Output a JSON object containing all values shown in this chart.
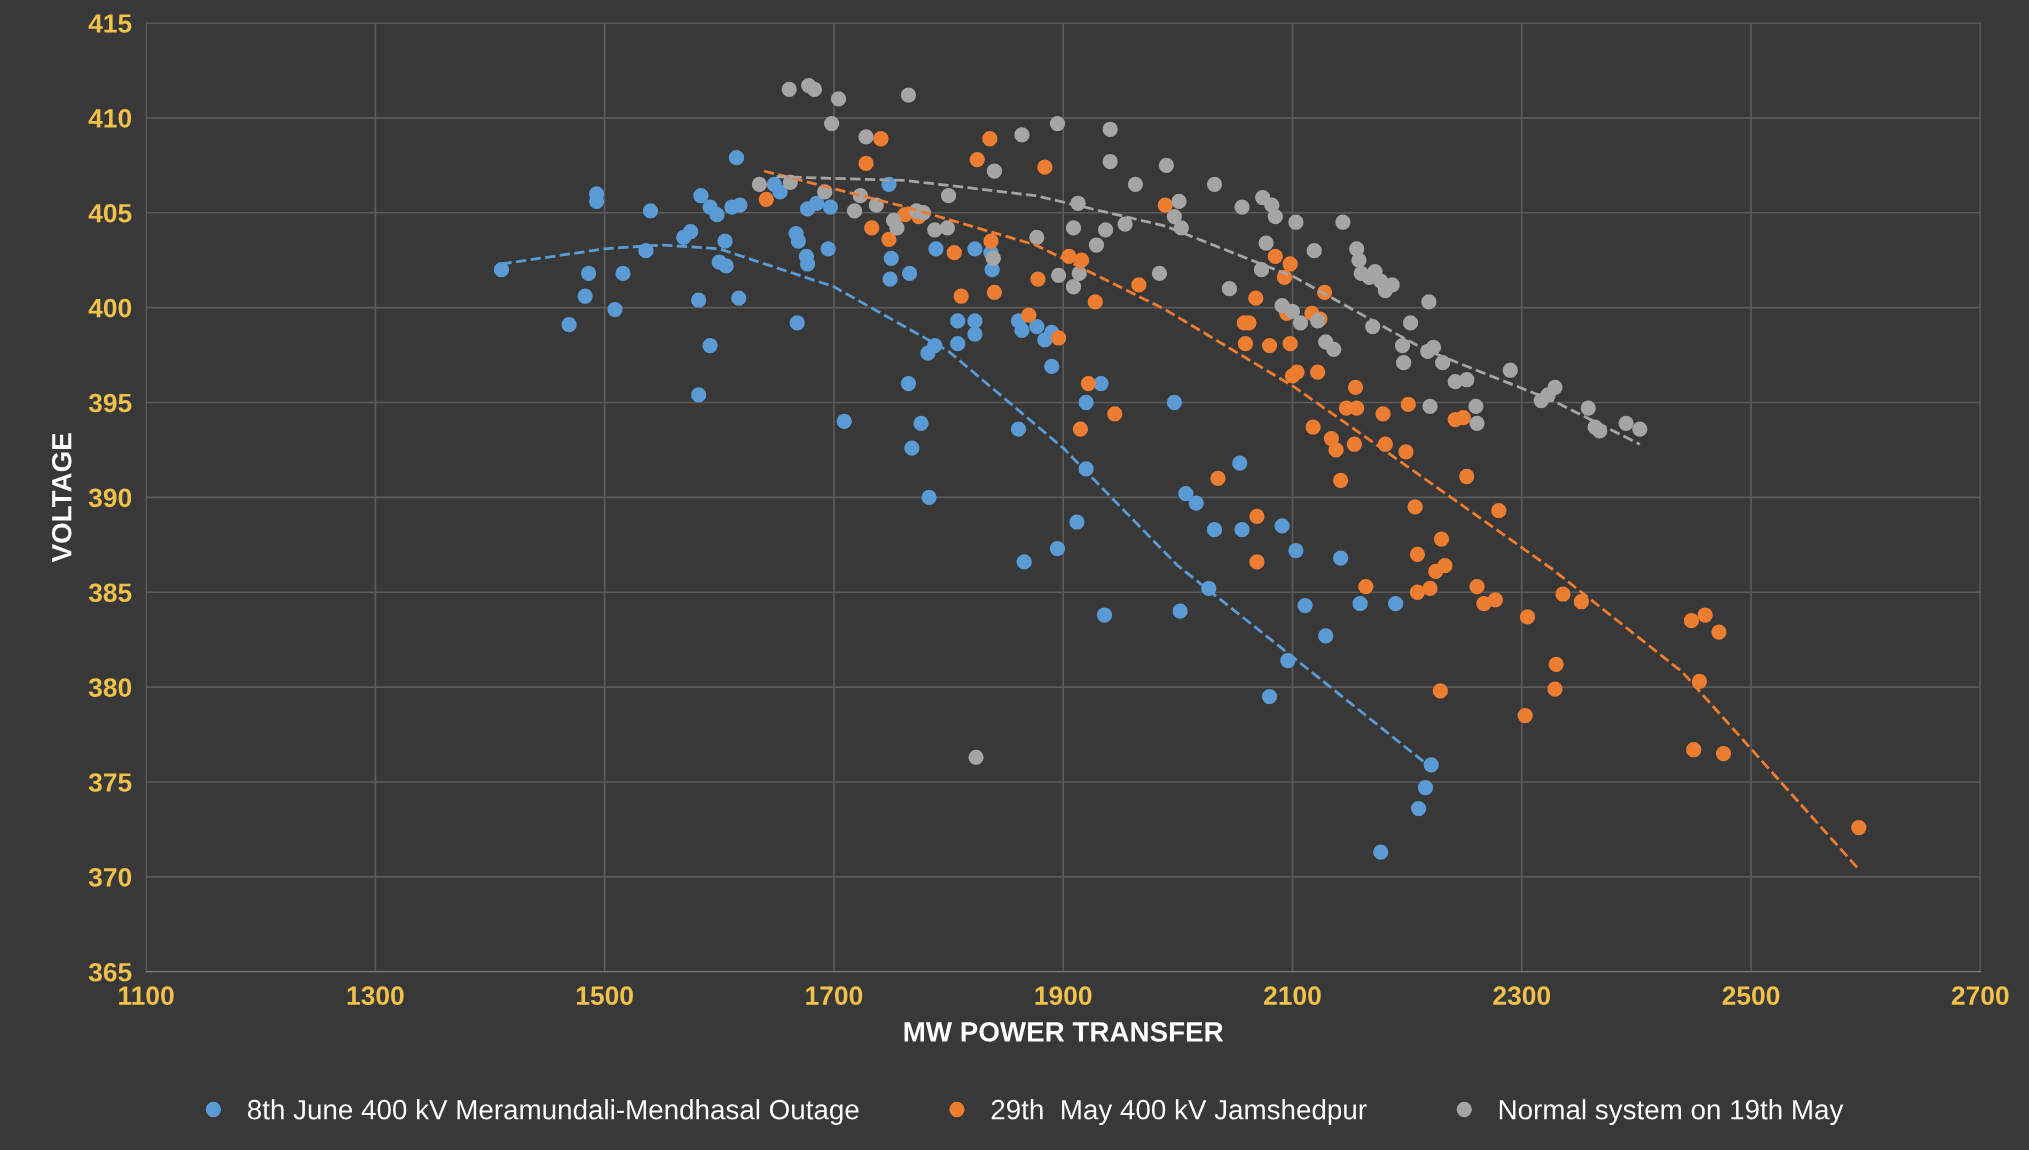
{
  "chart_data": {
    "type": "scatter",
    "xlabel": "MW POWER TRANSFER",
    "ylabel": "VOLTAGE",
    "xlim": [
      1100,
      2700
    ],
    "xticks": [
      1100,
      1300,
      1500,
      1700,
      1900,
      2100,
      2300,
      2500,
      2700
    ],
    "ylim": [
      365,
      415
    ],
    "yticks": [
      365,
      370,
      375,
      380,
      385,
      390,
      395,
      400,
      405,
      410,
      415
    ],
    "grid": true,
    "legend": "bottom",
    "marker": "circle",
    "series": [
      {
        "name": "8th June 400 kV Meramundali-Mendhasal Outage",
        "color": "#5b9bd5",
        "x": [
          1410,
          1469,
          1486,
          1483,
          1493,
          1493,
          1509,
          1516,
          1536,
          1540,
          1569,
          1575,
          1584,
          1582,
          1582,
          1592,
          1592,
          1598,
          1600,
          1606,
          1605,
          1611,
          1618,
          1615,
          1617,
          1648,
          1653,
          1667,
          1668,
          1669,
          1676,
          1677,
          1677,
          1685,
          1695,
          1697,
          1709,
          1748,
          1749,
          1750,
          1766,
          1765,
          1768,
          1776,
          1783,
          1782,
          1788,
          1789,
          1808,
          1808,
          1823,
          1823,
          1823,
          1838,
          1837,
          1861,
          1864,
          1861,
          1866,
          1877,
          1884,
          1890,
          1890,
          1895,
          1912,
          1920,
          1920,
          1933,
          1936,
          1997,
          2002,
          2007,
          2016,
          2027,
          2032,
          2054,
          2056,
          2091,
          2103,
          2096,
          2080,
          2111,
          2129,
          2142,
          2159,
          2190,
          2177,
          2210,
          2216,
          2221
        ],
        "values": [
          402.0,
          399.1,
          401.8,
          400.6,
          406.0,
          405.6,
          399.9,
          401.8,
          403.0,
          405.1,
          403.7,
          404.0,
          405.9,
          400.4,
          395.4,
          398.0,
          405.3,
          404.9,
          402.4,
          402.2,
          403.5,
          405.3,
          405.4,
          407.9,
          400.5,
          406.5,
          406.1,
          403.9,
          399.2,
          403.5,
          402.7,
          402.3,
          405.2,
          405.5,
          403.1,
          405.3,
          394.0,
          406.5,
          401.5,
          402.6,
          401.8,
          396.0,
          392.6,
          393.9,
          390.0,
          397.6,
          398.0,
          403.1,
          399.3,
          398.1,
          399.3,
          398.6,
          403.1,
          402.0,
          402.9,
          399.3,
          398.8,
          393.6,
          386.6,
          399.0,
          398.3,
          396.9,
          398.7,
          387.3,
          388.7,
          391.5,
          395.0,
          396.0,
          383.8,
          395.0,
          384.0,
          390.2,
          389.7,
          385.2,
          388.3,
          391.8,
          388.3,
          388.5,
          387.2,
          381.4,
          379.5,
          384.3,
          382.7,
          386.8,
          384.4,
          384.4,
          371.3,
          373.6,
          374.7,
          375.9
        ]
      },
      {
        "name": "29th  May 400 kV Jamshedpur",
        "color": "#ed7d31",
        "x": [
          1641,
          1728,
          1741,
          1733,
          1748,
          1762,
          1774,
          1805,
          1811,
          1825,
          1836,
          1837,
          1840,
          1870,
          1878,
          1884,
          1896,
          1905,
          1916,
          1915,
          1922,
          1928,
          1945,
          1966,
          1989,
          2035,
          2058,
          2062,
          2059,
          2068,
          2069,
          2069,
          2080,
          2085,
          2093,
          2098,
          2095,
          2098,
          2100,
          2104,
          2117,
          2118,
          2122,
          2124,
          2128,
          2134,
          2138,
          2147,
          2142,
          2154,
          2156,
          2155,
          2164,
          2179,
          2181,
          2199,
          2201,
          2207,
          2209,
          2209,
          2220,
          2225,
          2230,
          2233,
          2229,
          2242,
          2249,
          2252,
          2261,
          2267,
          2277,
          2280,
          2305,
          2303,
          2330,
          2329,
          2336,
          2352,
          2448,
          2460,
          2472,
          2455,
          2450,
          2476,
          2594
        ],
        "values": [
          405.7,
          407.6,
          408.9,
          404.2,
          403.6,
          404.9,
          404.8,
          402.9,
          400.6,
          407.8,
          408.9,
          403.5,
          400.8,
          399.6,
          401.5,
          407.4,
          398.4,
          402.7,
          402.5,
          393.6,
          396.0,
          400.3,
          394.4,
          401.2,
          405.4,
          391.0,
          399.2,
          399.2,
          398.1,
          400.5,
          386.6,
          389.0,
          398.0,
          402.7,
          401.6,
          398.1,
          399.7,
          402.3,
          396.4,
          396.6,
          399.7,
          393.7,
          396.6,
          399.4,
          400.8,
          393.1,
          392.5,
          394.7,
          390.9,
          392.8,
          394.7,
          395.8,
          385.3,
          394.4,
          392.8,
          392.4,
          394.9,
          389.5,
          387.0,
          385.0,
          385.2,
          386.1,
          387.8,
          386.4,
          379.8,
          394.1,
          394.2,
          391.1,
          385.3,
          384.4,
          384.6,
          389.3,
          383.7,
          378.5,
          381.2,
          379.9,
          384.9,
          384.5,
          383.5,
          383.8,
          382.9,
          380.3,
          376.7,
          376.5,
          372.6
        ]
      },
      {
        "name": "Normal system on 19th May",
        "color": "#a5a5a5",
        "x": [
          1661,
          1678,
          1683,
          1704,
          1698,
          1728,
          1765,
          1635,
          1662,
          1692,
          1718,
          1723,
          1737,
          1752,
          1755,
          1772,
          1778,
          1788,
          1799,
          1800,
          1840,
          1839,
          1864,
          1877,
          1895,
          1896,
          1909,
          1909,
          1913,
          1914,
          1929,
          1937,
          1941,
          1941,
          1954,
          1963,
          1984,
          1990,
          1997,
          2001,
          2003,
          2032,
          2045,
          2056,
          2074,
          2073,
          2077,
          2082,
          2085,
          2091,
          2100,
          2103,
          2107,
          2119,
          2122,
          2129,
          2136,
          2144,
          2156,
          2158,
          2160,
          2167,
          2172,
          2177,
          2181,
          2187,
          2170,
          2196,
          2197,
          2203,
          2219,
          2218,
          2223,
          2231,
          2242,
          2252,
          2260,
          2261,
          2220,
          2290,
          2317,
          2323,
          2329,
          2358,
          2364,
          2368,
          2391,
          2403,
          1824
        ],
        "values": [
          411.5,
          411.7,
          411.5,
          411.0,
          409.7,
          409.0,
          411.2,
          406.5,
          406.6,
          406.1,
          405.1,
          405.9,
          405.4,
          404.6,
          404.2,
          405.1,
          405.0,
          404.1,
          404.2,
          405.9,
          407.2,
          402.6,
          409.1,
          403.7,
          409.7,
          401.7,
          401.1,
          404.2,
          405.5,
          401.8,
          403.3,
          404.1,
          409.4,
          407.7,
          404.4,
          406.5,
          401.8,
          407.5,
          404.8,
          405.6,
          404.2,
          406.5,
          401.0,
          405.3,
          405.8,
          402.0,
          403.4,
          405.4,
          404.8,
          400.1,
          399.8,
          404.5,
          399.2,
          403.0,
          399.3,
          398.2,
          397.8,
          404.5,
          403.1,
          402.5,
          401.8,
          401.6,
          401.9,
          401.4,
          400.9,
          401.2,
          399.0,
          398.0,
          397.1,
          399.2,
          400.3,
          397.7,
          397.9,
          397.1,
          396.1,
          396.2,
          394.8,
          393.9,
          394.8,
          396.7,
          395.1,
          395.4,
          395.8,
          394.7,
          393.7,
          393.5,
          393.9,
          393.6,
          376.3
        ]
      },
      {
        "type": "line",
        "color": "#5b9bd5",
        "line_style": "dashed",
        "marker": "none",
        "x": [
          1410,
          1500,
          1550,
          1600,
          1700,
          1800,
          1900,
          2000,
          2100,
          2220
        ],
        "values": [
          402.3,
          403.1,
          403.3,
          403.1,
          401.1,
          397.7,
          392.6,
          386.4,
          381.6,
          375.8
        ]
      },
      {
        "type": "line",
        "color": "#ed7d31",
        "line_style": "dashed",
        "marker": "none",
        "x": [
          1639,
          1763,
          1876,
          1989,
          2102,
          2215,
          2327,
          2440,
          2594
        ],
        "values": [
          407.2,
          405.3,
          403.3,
          399.9,
          395.8,
          391.0,
          386.2,
          380.8,
          370.4
        ]
      },
      {
        "type": "line",
        "color": "#a5a5a5",
        "line_style": "dashed",
        "marker": "none",
        "x": [
          1650,
          1763,
          1876,
          1989,
          2102,
          2215,
          2327,
          2403
        ],
        "values": [
          406.9,
          406.7,
          405.9,
          404.3,
          401.6,
          397.8,
          395.1,
          392.8
        ]
      }
    ]
  }
}
